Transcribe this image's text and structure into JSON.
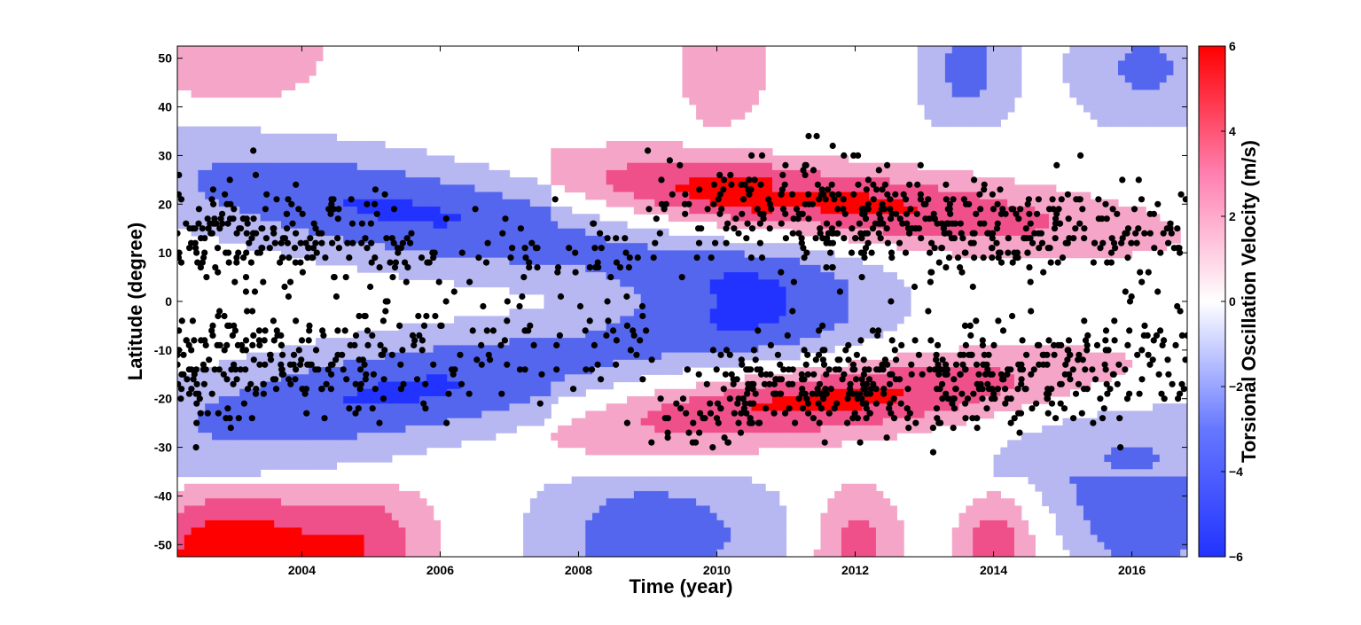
{
  "chart_data": {
    "type": "heatmap",
    "title": "",
    "xlabel": "Time (year)",
    "ylabel": "Latitude (degree)",
    "colorbar_label": "Torsional Oscillation Velocity (m/s)",
    "xlim": [
      2002.2,
      2016.8
    ],
    "ylim": [
      -52.5,
      52.5
    ],
    "clim": [
      -6,
      6
    ],
    "x_ticks": [
      2004,
      2006,
      2008,
      2010,
      2012,
      2014,
      2016
    ],
    "y_ticks": [
      -50,
      -40,
      -30,
      -20,
      -10,
      0,
      10,
      20,
      30,
      40,
      50
    ],
    "colorbar_ticks": [
      -6,
      -4,
      -2,
      0,
      2,
      4,
      6
    ],
    "colormap": {
      "negative_strong": "#2233ff",
      "negative_mid": "#5566ee",
      "negative_weak": "#b7b7f2",
      "zero": "#ffffff",
      "positive_weak": "#f5a6c8",
      "positive_mid": "#f0508a",
      "positive_strong": "#ff0000"
    },
    "grid": false,
    "overlay": {
      "type": "scatter",
      "marker": "filled-circle",
      "color": "#000000",
      "description_bands": "sunspot positions: northern branch drifting from ~15° (2002) toward ~8° (2016); southern branch from ~-15° to ~-12°"
    }
  }
}
